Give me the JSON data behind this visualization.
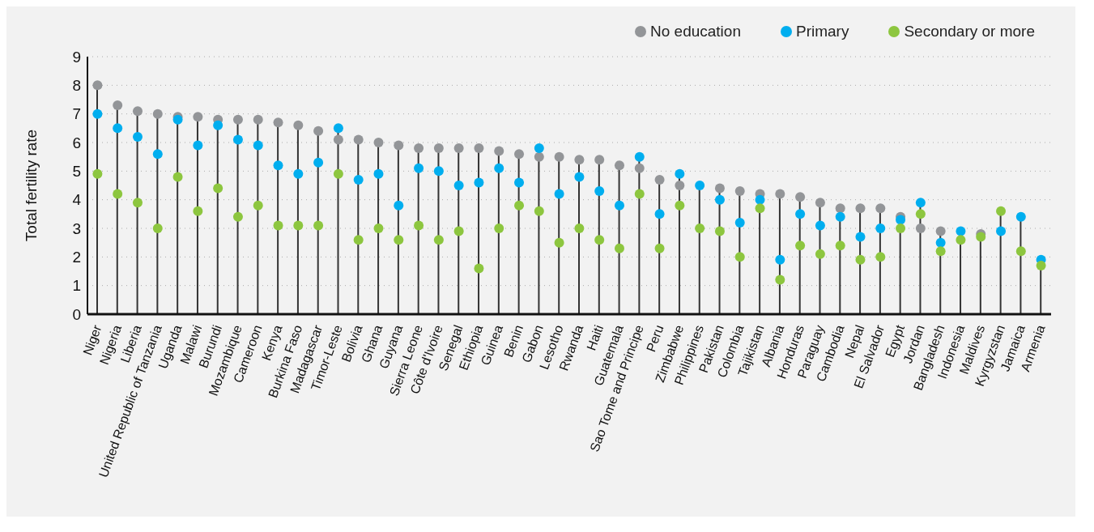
{
  "chart_data": {
    "type": "lollipop",
    "ylabel": "Total fertility rate",
    "ylim": [
      0,
      9
    ],
    "yticks": [
      0,
      1,
      2,
      3,
      4,
      5,
      6,
      7,
      8,
      9
    ],
    "grid": "y",
    "legend": "top right",
    "marker": "circle",
    "categories": [
      "Niger",
      "Nigeria",
      "Liberia",
      "United Republic of Tanzania",
      "Uganda",
      "Malawi",
      "Burundi",
      "Mozambique",
      "Cameroon",
      "Kenya",
      "Burkina Faso",
      "Madagascar",
      "Timor-Leste",
      "Bolivia",
      "Ghana",
      "Guyana",
      "Sierra Leone",
      "Côte d'Ivoire",
      "Senegal",
      "Ethiopia",
      "Guinea",
      "Benin",
      "Gabon",
      "Lesotho",
      "Rwanda",
      "Haiti",
      "Guatemala",
      "Sao Tome and Principe",
      "Peru",
      "Zimbabwe",
      "Philippines",
      "Pakistan",
      "Colombia",
      "Tajikistan",
      "Albania",
      "Honduras",
      "Paraguay",
      "Cambodia",
      "Nepal",
      "El Salvador",
      "Egypt",
      "Jordan",
      "Bangladesh",
      "Indonesia",
      "Maldives",
      "Kyrgyzstan",
      "Jamaica",
      "Armenia"
    ],
    "series": [
      {
        "name": "No education",
        "color": "#939598",
        "values": [
          8.0,
          7.3,
          7.1,
          7.0,
          6.9,
          6.9,
          6.8,
          6.8,
          6.8,
          6.7,
          6.6,
          6.4,
          6.1,
          6.1,
          6.0,
          5.9,
          5.8,
          5.8,
          5.8,
          5.8,
          5.7,
          5.6,
          5.5,
          5.5,
          5.4,
          5.4,
          5.2,
          5.1,
          4.7,
          4.5,
          null,
          4.4,
          4.3,
          4.2,
          4.2,
          4.1,
          3.9,
          3.7,
          3.7,
          3.7,
          3.4,
          3.0,
          2.9,
          null,
          2.8,
          null,
          null,
          null
        ]
      },
      {
        "name": "Primary",
        "color": "#00aeef",
        "values": [
          7.0,
          6.5,
          6.2,
          5.6,
          6.8,
          5.9,
          6.6,
          6.1,
          5.9,
          5.2,
          4.9,
          5.3,
          6.5,
          4.7,
          4.9,
          3.8,
          5.1,
          5.0,
          4.5,
          4.6,
          5.1,
          4.6,
          5.8,
          4.2,
          4.8,
          4.3,
          3.8,
          5.5,
          3.5,
          4.9,
          4.5,
          4.0,
          3.2,
          4.0,
          1.9,
          3.5,
          3.1,
          3.4,
          2.7,
          3.0,
          3.3,
          3.9,
          2.5,
          2.9,
          null,
          2.9,
          3.4,
          1.9
        ]
      },
      {
        "name": "Secondary or more",
        "color": "#8dc63f",
        "values": [
          4.9,
          4.2,
          3.9,
          3.0,
          4.8,
          3.6,
          4.4,
          3.4,
          3.8,
          3.1,
          3.1,
          3.1,
          4.9,
          2.6,
          3.0,
          2.6,
          3.1,
          2.6,
          2.9,
          1.6,
          3.0,
          3.8,
          3.6,
          2.5,
          3.0,
          2.6,
          2.3,
          4.2,
          2.3,
          3.8,
          3.0,
          2.9,
          2.0,
          3.7,
          1.2,
          2.4,
          2.1,
          2.4,
          1.9,
          2.0,
          3.0,
          3.5,
          2.2,
          2.6,
          2.7,
          3.6,
          2.2,
          1.7
        ]
      }
    ]
  }
}
